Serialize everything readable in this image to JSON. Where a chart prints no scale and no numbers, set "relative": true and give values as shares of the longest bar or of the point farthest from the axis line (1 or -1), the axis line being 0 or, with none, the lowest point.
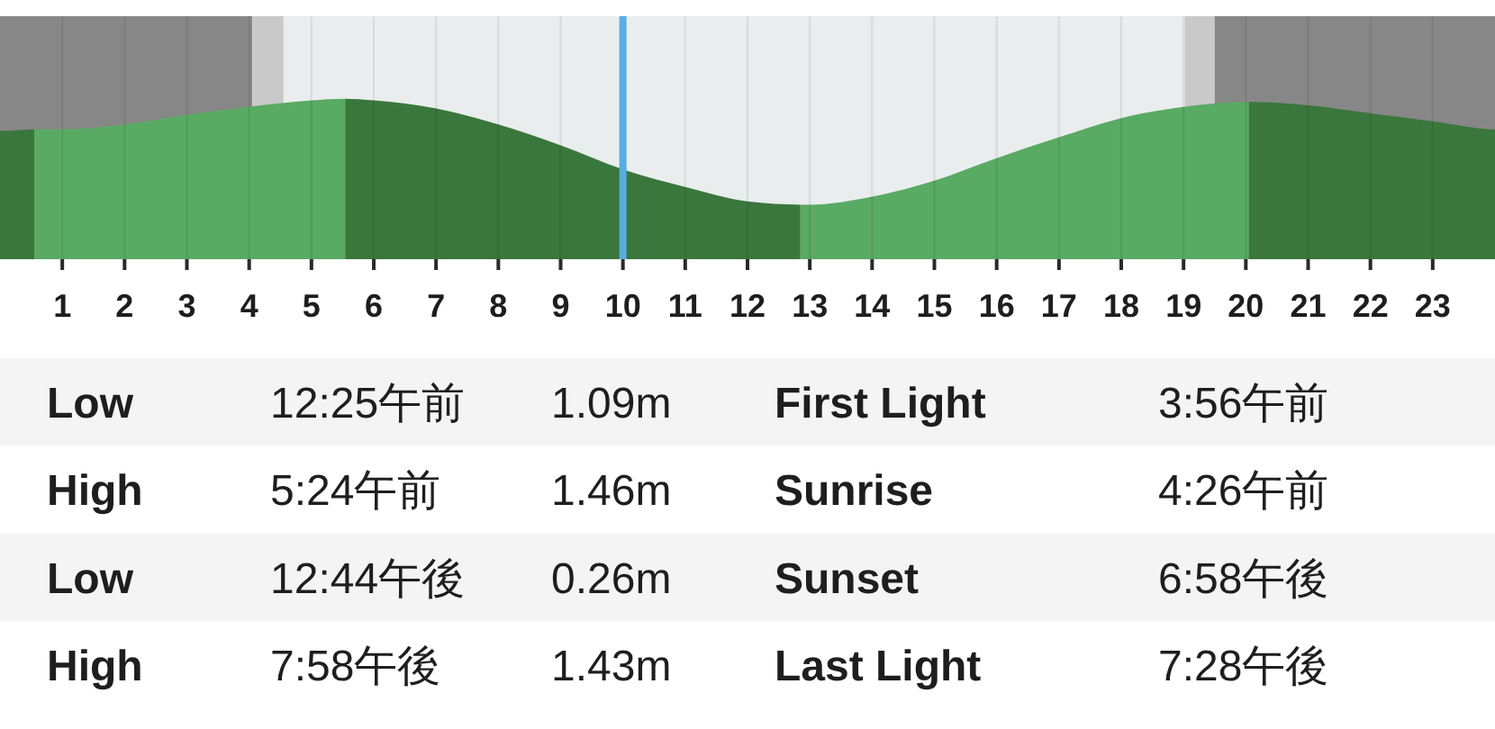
{
  "chart_data": {
    "type": "area",
    "relative": true,
    "xlim": [
      0,
      24
    ],
    "xticks": [
      1,
      2,
      3,
      4,
      5,
      6,
      7,
      8,
      9,
      10,
      11,
      12,
      13,
      14,
      15,
      16,
      17,
      18,
      19,
      20,
      21,
      22,
      23
    ],
    "grid": "x",
    "series": [
      {
        "color": "#3a773c",
        "x": [
          0,
          0.55
        ],
        "values": [
          0.8,
          0.81
        ]
      },
      {
        "color": "#59aa63",
        "x": [
          0.55,
          1,
          2,
          3,
          4,
          5,
          5.54
        ],
        "values": [
          0.81,
          0.81,
          0.84,
          0.9,
          0.95,
          0.99,
          1
        ]
      },
      {
        "color": "#3a773c",
        "x": [
          5.54,
          6,
          7,
          8,
          9,
          10,
          11,
          12,
          12.85
        ],
        "values": [
          1,
          0.99,
          0.94,
          0.84,
          0.71,
          0.56,
          0.45,
          0.36,
          0.34
        ]
      },
      {
        "color": "#59aa63",
        "x": [
          12.85,
          13,
          14,
          15,
          16,
          17,
          18,
          19,
          20.05
        ],
        "values": [
          0.34,
          0.34,
          0.39,
          0.49,
          0.63,
          0.76,
          0.88,
          0.95,
          0.98
        ]
      },
      {
        "color": "#3a773c",
        "x": [
          20.05,
          21,
          22,
          23,
          24
        ],
        "values": [
          0.98,
          0.96,
          0.91,
          0.86,
          0.81
        ]
      }
    ],
    "bands": [
      {
        "axis": "x",
        "from": 0,
        "to": 4.05,
        "color": "#878787"
      },
      {
        "axis": "x",
        "from": 4.05,
        "to": 4.55,
        "color": "#c9c9c9"
      },
      {
        "axis": "x",
        "from": 19.02,
        "to": 19.5,
        "color": "#c9c9c9"
      },
      {
        "axis": "x",
        "from": 19.5,
        "to": 24,
        "color": "#878787"
      }
    ],
    "ref_lines": [
      {
        "axis": "x",
        "value": 10,
        "color": "#5aade2"
      }
    ],
    "annotations": [
      "Low",
      "12:25午前",
      "1.09m",
      "First Light",
      "3:56午前",
      "High",
      "5:24午前",
      "1.46m",
      "Sunrise",
      "4:26午前",
      "Low",
      "12:44午後",
      "0.26m",
      "Sunset",
      "6:58午後",
      "High",
      "7:58午後",
      "1.43m",
      "Last Light",
      "7:28午後"
    ]
  }
}
